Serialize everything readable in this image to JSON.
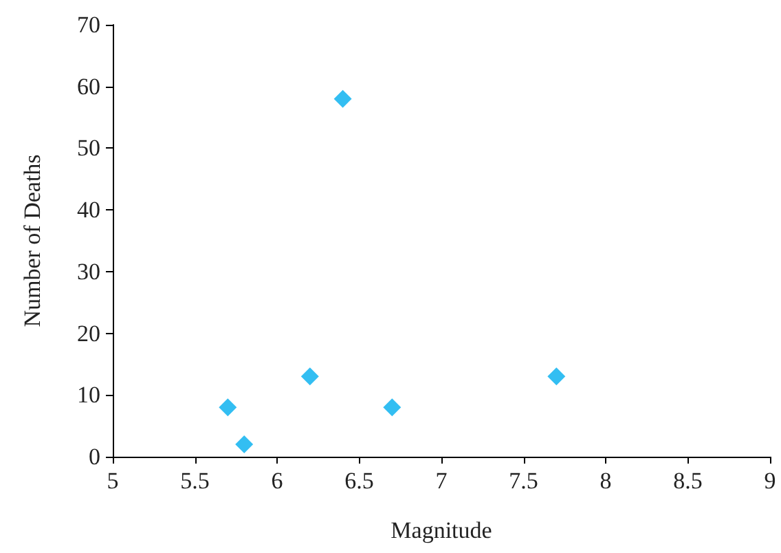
{
  "chart_data": {
    "type": "scatter",
    "xlabel": "Magnitude",
    "ylabel": "Number of Deaths",
    "x": [
      5.7,
      5.8,
      6.2,
      6.4,
      6.7,
      7.7
    ],
    "series": [
      {
        "color": "#00aeef",
        "values": [
          8,
          2,
          13,
          58,
          8,
          13
        ]
      }
    ],
    "xlim": [
      5,
      9
    ],
    "xticks": [
      5,
      5.5,
      6,
      6.5,
      7,
      7.5,
      8,
      8.5,
      9
    ],
    "ylim": [
      0,
      70
    ],
    "yticks": [
      0,
      10,
      20,
      30,
      40,
      50,
      60,
      70
    ],
    "grid": false,
    "marker": "diamond"
  }
}
